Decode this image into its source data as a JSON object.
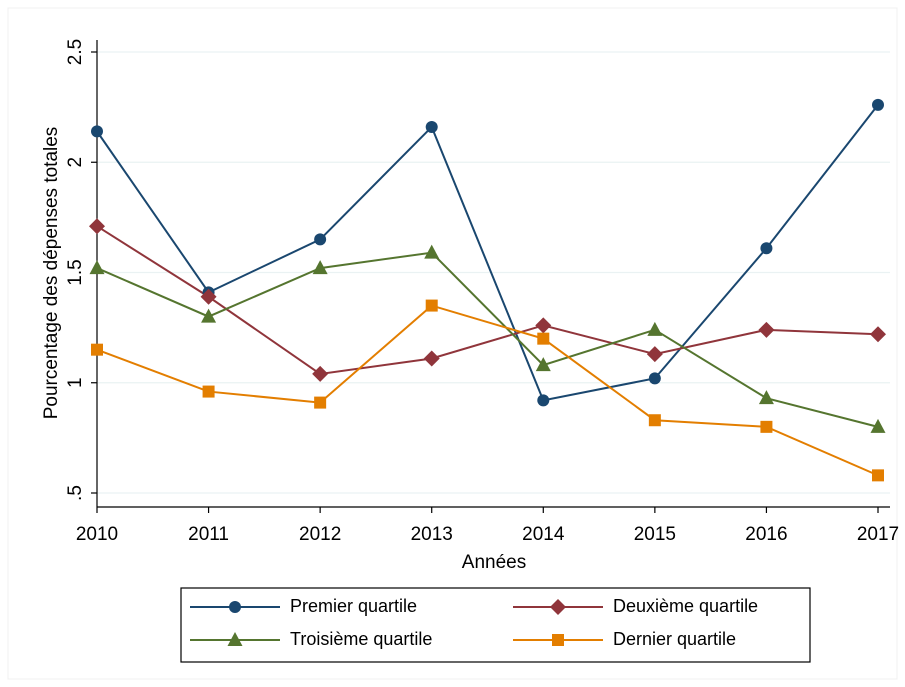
{
  "chart_data": {
    "type": "line",
    "y_label": "Pourcentage des dépenses totales",
    "x_label": "Années",
    "x": [
      2010,
      2011,
      2012,
      2013,
      2014,
      2015,
      2016,
      2017
    ],
    "xlim": [
      2010,
      2017
    ],
    "xticks": [
      2010,
      2011,
      2012,
      2013,
      2014,
      2015,
      2016,
      2017
    ],
    "ylim": [
      0.5,
      2.5
    ],
    "yticks": [
      {
        "value": 0.5,
        "label": ".5"
      },
      1,
      1.5,
      2,
      2.5
    ],
    "grid": true,
    "legend": "bottom",
    "series": [
      {
        "name": "Premier quartile",
        "color": "#1a476f",
        "marker": "circle",
        "values": [
          2.14,
          1.41,
          1.65,
          2.16,
          0.92,
          1.02,
          1.61,
          2.26
        ]
      },
      {
        "name": "Deuxième quartile",
        "color": "#90353b",
        "marker": "diamond",
        "values": [
          1.71,
          1.39,
          1.04,
          1.11,
          1.26,
          1.13,
          1.24,
          1.22
        ]
      },
      {
        "name": "Troisième quartile",
        "color": "#55752f",
        "marker": "triangle",
        "values": [
          1.52,
          1.3,
          1.52,
          1.59,
          1.08,
          1.24,
          0.93,
          0.8
        ]
      },
      {
        "name": "Dernier quartile",
        "color": "#e37e00",
        "marker": "square",
        "values": [
          1.15,
          0.96,
          0.91,
          1.35,
          1.2,
          0.83,
          0.8,
          0.58
        ]
      }
    ]
  }
}
